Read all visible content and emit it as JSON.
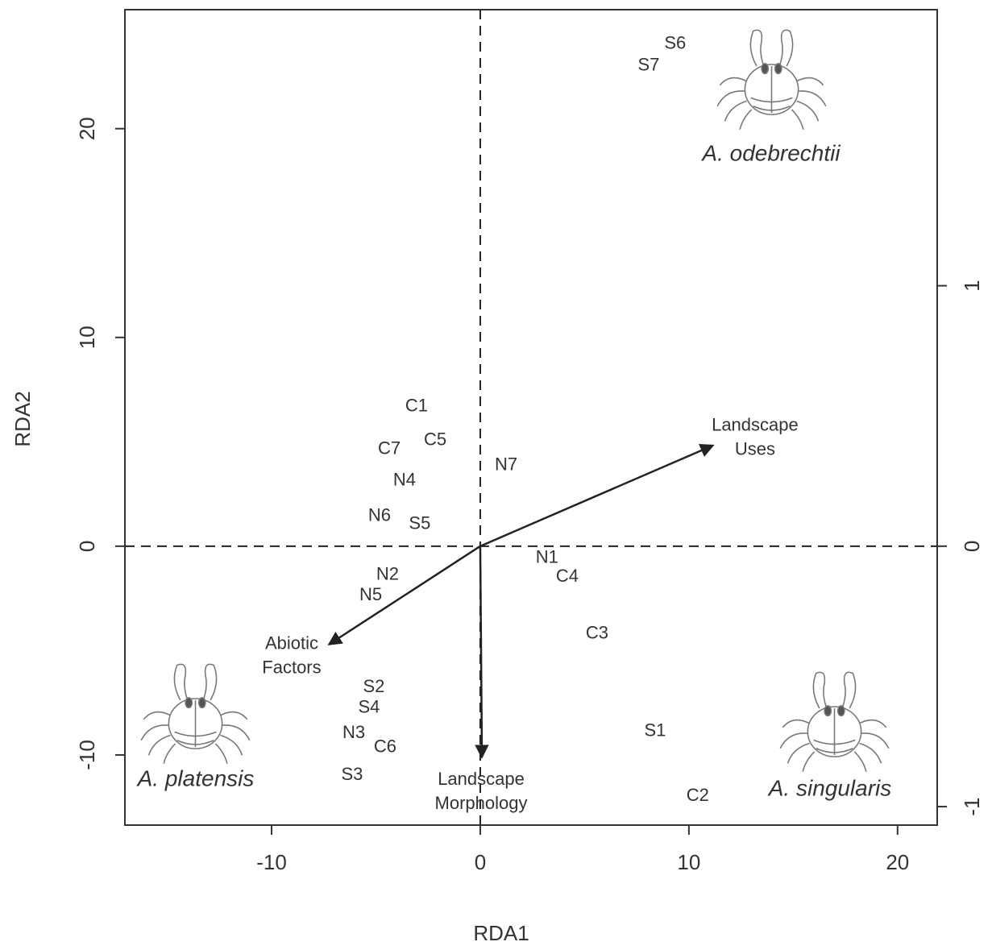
{
  "chart_data": {
    "type": "scatter",
    "xlabel": "RDA1",
    "ylabel": "RDA2",
    "xlim": [
      -17.03,
      21.9
    ],
    "ylim": [
      -13.36,
      25.7
    ],
    "y2lim": [
      -1.071,
      2.06
    ],
    "xticks": [
      -10,
      0,
      10,
      20
    ],
    "yticks": [
      -10,
      0,
      10,
      20
    ],
    "y2ticks": [
      -1,
      0,
      1
    ],
    "labels": [
      "S6",
      "S7",
      "C1",
      "C5",
      "C7",
      "N7",
      "N4",
      "N6",
      "S5",
      "N1",
      "C4",
      "N2",
      "N5",
      "C3",
      "S2",
      "S4",
      "N3",
      "C6",
      "S1",
      "S3",
      "C2"
    ],
    "x": [
      9.34,
      8.07,
      -3.05,
      -2.16,
      -4.36,
      1.24,
      -3.63,
      -4.83,
      -2.9,
      3.2,
      4.17,
      -4.44,
      -5.25,
      5.6,
      -5.1,
      -5.33,
      -6.06,
      -4.56,
      8.38,
      -6.14,
      10.42
    ],
    "y": [
      24.05,
      23.01,
      6.68,
      5.06,
      4.63,
      3.86,
      3.13,
      1.43,
      1.04,
      -0.58,
      -1.47,
      -1.39,
      -2.36,
      -4.21,
      -6.76,
      -7.76,
      -8.96,
      -9.65,
      -8.88,
      -10.97,
      -11.97
    ],
    "color": "#333333",
    "arrows": [
      {
        "label": [
          "Landscape",
          "Uses"
        ],
        "x": 11.16,
        "y": 4.83
      },
      {
        "label": [
          "Abiotic",
          "Factors"
        ],
        "x": -7.26,
        "y": -4.71
      },
      {
        "label": [
          "Landscape",
          "Morphology"
        ],
        "x": 0.08,
        "y": -10.12
      }
    ],
    "species": [
      "A. odebrechtii",
      "A. platensis",
      "A. singularis"
    ]
  }
}
